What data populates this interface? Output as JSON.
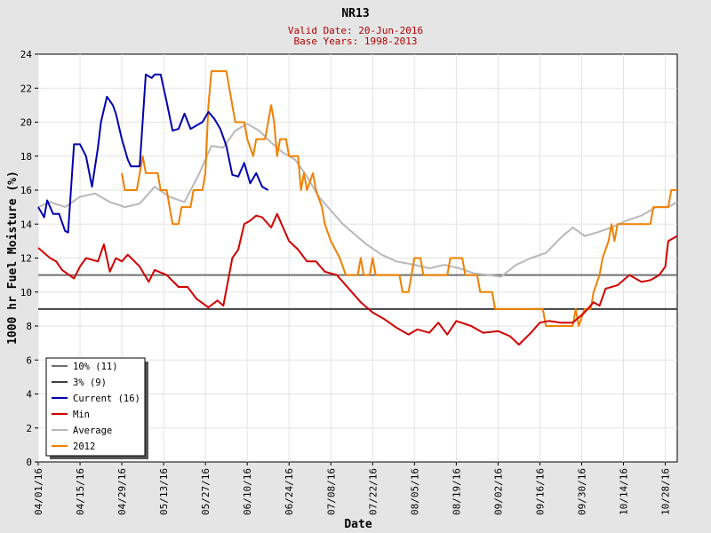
{
  "chart_data": {
    "type": "line",
    "title": "NR13",
    "subtitle_lines": [
      "Valid Date: 20-Jun-2016",
      "Base Years: 1998-2013"
    ],
    "xlabel": "Date",
    "ylabel": "1000 hr Fuel Moisture (%)",
    "x_start": "2016-04-01",
    "x_end": "2016-11-01",
    "ylim": [
      0,
      24
    ],
    "yticks": [
      0,
      2,
      4,
      6,
      8,
      10,
      12,
      14,
      16,
      18,
      20,
      22,
      24
    ],
    "xtick_labels": [
      "04/01/16",
      "04/15/16",
      "04/29/16",
      "05/13/16",
      "05/27/16",
      "06/10/16",
      "06/24/16",
      "07/08/16",
      "07/22/16",
      "08/05/16",
      "08/19/16",
      "09/02/16",
      "09/16/16",
      "09/30/16",
      "10/14/16",
      "10/28/16"
    ],
    "grid": true,
    "legend_position": "bottom-left",
    "thresholds": [
      {
        "name": "10% (11)",
        "value": 11,
        "color": "#707070"
      },
      {
        "name": "3% (9)",
        "value": 9,
        "color": "#404040"
      }
    ],
    "series": [
      {
        "name": "Current (16)",
        "color": "#0000b0",
        "points": [
          [
            "2016-04-01",
            15.0
          ],
          [
            "2016-04-03",
            14.4
          ],
          [
            "2016-04-04",
            15.4
          ],
          [
            "2016-04-06",
            14.6
          ],
          [
            "2016-04-08",
            14.6
          ],
          [
            "2016-04-10",
            13.6
          ],
          [
            "2016-04-11",
            13.5
          ],
          [
            "2016-04-13",
            18.7
          ],
          [
            "2016-04-15",
            18.7
          ],
          [
            "2016-04-17",
            18.0
          ],
          [
            "2016-04-19",
            16.2
          ],
          [
            "2016-04-21",
            18.5
          ],
          [
            "2016-04-22",
            20.0
          ],
          [
            "2016-04-24",
            21.5
          ],
          [
            "2016-04-26",
            21.0
          ],
          [
            "2016-04-27",
            20.5
          ],
          [
            "2016-04-29",
            19.0
          ],
          [
            "2016-05-01",
            17.8
          ],
          [
            "2016-05-02",
            17.4
          ],
          [
            "2016-05-05",
            17.4
          ],
          [
            "2016-05-07",
            22.8
          ],
          [
            "2016-05-09",
            22.6
          ],
          [
            "2016-05-10",
            22.8
          ],
          [
            "2016-05-12",
            22.8
          ],
          [
            "2016-05-14",
            21.2
          ],
          [
            "2016-05-16",
            19.5
          ],
          [
            "2016-05-18",
            19.6
          ],
          [
            "2016-05-20",
            20.5
          ],
          [
            "2016-05-22",
            19.6
          ],
          [
            "2016-05-24",
            19.8
          ],
          [
            "2016-05-26",
            20.0
          ],
          [
            "2016-05-28",
            20.6
          ],
          [
            "2016-05-30",
            20.2
          ],
          [
            "2016-06-01",
            19.6
          ],
          [
            "2016-06-03",
            18.6
          ],
          [
            "2016-06-05",
            16.9
          ],
          [
            "2016-06-07",
            16.8
          ],
          [
            "2016-06-09",
            17.6
          ],
          [
            "2016-06-11",
            16.4
          ],
          [
            "2016-06-13",
            17.0
          ],
          [
            "2016-06-15",
            16.2
          ],
          [
            "2016-06-17",
            16.0
          ]
        ]
      },
      {
        "name": "Min",
        "color": "#d00000",
        "points": [
          [
            "2016-04-01",
            12.6
          ],
          [
            "2016-04-05",
            12.0
          ],
          [
            "2016-04-07",
            11.8
          ],
          [
            "2016-04-09",
            11.3
          ],
          [
            "2016-04-13",
            10.8
          ],
          [
            "2016-04-15",
            11.5
          ],
          [
            "2016-04-17",
            12.0
          ],
          [
            "2016-04-21",
            11.8
          ],
          [
            "2016-04-23",
            12.8
          ],
          [
            "2016-04-25",
            11.2
          ],
          [
            "2016-04-27",
            12.0
          ],
          [
            "2016-04-29",
            11.8
          ],
          [
            "2016-05-01",
            12.2
          ],
          [
            "2016-05-05",
            11.5
          ],
          [
            "2016-05-08",
            10.6
          ],
          [
            "2016-05-10",
            11.3
          ],
          [
            "2016-05-14",
            11.0
          ],
          [
            "2016-05-18",
            10.3
          ],
          [
            "2016-05-21",
            10.3
          ],
          [
            "2016-05-24",
            9.6
          ],
          [
            "2016-05-28",
            9.1
          ],
          [
            "2016-05-31",
            9.5
          ],
          [
            "2016-06-02",
            9.2
          ],
          [
            "2016-06-05",
            12.0
          ],
          [
            "2016-06-07",
            12.5
          ],
          [
            "2016-06-09",
            14.0
          ],
          [
            "2016-06-11",
            14.2
          ],
          [
            "2016-06-13",
            14.5
          ],
          [
            "2016-06-15",
            14.4
          ],
          [
            "2016-06-18",
            13.8
          ],
          [
            "2016-06-20",
            14.6
          ],
          [
            "2016-06-24",
            13.0
          ],
          [
            "2016-06-27",
            12.5
          ],
          [
            "2016-06-30",
            11.8
          ],
          [
            "2016-07-03",
            11.8
          ],
          [
            "2016-07-06",
            11.2
          ],
          [
            "2016-07-10",
            11.0
          ],
          [
            "2016-07-14",
            10.2
          ],
          [
            "2016-07-18",
            9.4
          ],
          [
            "2016-07-22",
            8.8
          ],
          [
            "2016-07-26",
            8.4
          ],
          [
            "2016-07-30",
            7.9
          ],
          [
            "2016-08-03",
            7.5
          ],
          [
            "2016-08-06",
            7.8
          ],
          [
            "2016-08-10",
            7.6
          ],
          [
            "2016-08-13",
            8.2
          ],
          [
            "2016-08-16",
            7.5
          ],
          [
            "2016-08-19",
            8.3
          ],
          [
            "2016-08-24",
            8.0
          ],
          [
            "2016-08-28",
            7.6
          ],
          [
            "2016-09-02",
            7.7
          ],
          [
            "2016-09-06",
            7.4
          ],
          [
            "2016-09-09",
            6.9
          ],
          [
            "2016-09-13",
            7.6
          ],
          [
            "2016-09-16",
            8.2
          ],
          [
            "2016-09-19",
            8.3
          ],
          [
            "2016-09-23",
            8.2
          ],
          [
            "2016-09-27",
            8.2
          ],
          [
            "2016-10-01",
            8.8
          ],
          [
            "2016-10-04",
            9.4
          ],
          [
            "2016-10-06",
            9.2
          ],
          [
            "2016-10-08",
            10.2
          ],
          [
            "2016-10-12",
            10.4
          ],
          [
            "2016-10-16",
            11.0
          ],
          [
            "2016-10-20",
            10.6
          ],
          [
            "2016-10-23",
            10.7
          ],
          [
            "2016-10-26",
            11.0
          ],
          [
            "2016-10-28",
            11.5
          ],
          [
            "2016-10-29",
            13.0
          ],
          [
            "2016-11-01",
            13.3
          ]
        ]
      },
      {
        "name": "Average",
        "color": "#b8b8b8",
        "points": [
          [
            "2016-04-01",
            15.0
          ],
          [
            "2016-04-05",
            15.3
          ],
          [
            "2016-04-10",
            15.0
          ],
          [
            "2016-04-15",
            15.6
          ],
          [
            "2016-04-20",
            15.8
          ],
          [
            "2016-04-25",
            15.3
          ],
          [
            "2016-04-30",
            15.0
          ],
          [
            "2016-05-05",
            15.2
          ],
          [
            "2016-05-10",
            16.2
          ],
          [
            "2016-05-15",
            15.6
          ],
          [
            "2016-05-20",
            15.3
          ],
          [
            "2016-05-25",
            17.0
          ],
          [
            "2016-05-29",
            18.6
          ],
          [
            "2016-06-02",
            18.5
          ],
          [
            "2016-06-06",
            19.5
          ],
          [
            "2016-06-10",
            19.9
          ],
          [
            "2016-06-14",
            19.5
          ],
          [
            "2016-06-18",
            18.8
          ],
          [
            "2016-06-22",
            18.2
          ],
          [
            "2016-06-26",
            17.8
          ],
          [
            "2016-06-30",
            16.8
          ],
          [
            "2016-07-04",
            15.6
          ],
          [
            "2016-07-08",
            14.8
          ],
          [
            "2016-07-12",
            14.0
          ],
          [
            "2016-07-16",
            13.4
          ],
          [
            "2016-07-20",
            12.8
          ],
          [
            "2016-07-25",
            12.2
          ],
          [
            "2016-07-30",
            11.8
          ],
          [
            "2016-08-05",
            11.6
          ],
          [
            "2016-08-10",
            11.4
          ],
          [
            "2016-08-15",
            11.6
          ],
          [
            "2016-08-20",
            11.4
          ],
          [
            "2016-08-25",
            11.1
          ],
          [
            "2016-08-30",
            11.0
          ],
          [
            "2016-09-03",
            10.9
          ],
          [
            "2016-09-08",
            11.6
          ],
          [
            "2016-09-13",
            12.0
          ],
          [
            "2016-09-18",
            12.3
          ],
          [
            "2016-09-23",
            13.2
          ],
          [
            "2016-09-27",
            13.8
          ],
          [
            "2016-10-01",
            13.3
          ],
          [
            "2016-10-05",
            13.5
          ],
          [
            "2016-10-10",
            13.8
          ],
          [
            "2016-10-15",
            14.2
          ],
          [
            "2016-10-20",
            14.5
          ],
          [
            "2016-10-25",
            15.0
          ],
          [
            "2016-10-29",
            15.0
          ],
          [
            "2016-11-01",
            15.3
          ]
        ]
      },
      {
        "name": "2012",
        "color": "#f08000",
        "points": [
          [
            "2016-04-29",
            17.0
          ],
          [
            "2016-04-30",
            16.0
          ],
          [
            "2016-05-04",
            16.0
          ],
          [
            "2016-05-05",
            17.0
          ],
          [
            "2016-05-06",
            18.0
          ],
          [
            "2016-05-07",
            17.0
          ],
          [
            "2016-05-11",
            17.0
          ],
          [
            "2016-05-12",
            16.0
          ],
          [
            "2016-05-14",
            16.0
          ],
          [
            "2016-05-15",
            15.0
          ],
          [
            "2016-05-16",
            14.0
          ],
          [
            "2016-05-18",
            14.0
          ],
          [
            "2016-05-19",
            15.0
          ],
          [
            "2016-05-22",
            15.0
          ],
          [
            "2016-05-23",
            16.0
          ],
          [
            "2016-05-26",
            16.0
          ],
          [
            "2016-05-27",
            17.0
          ],
          [
            "2016-05-28",
            21.0
          ],
          [
            "2016-05-29",
            23.0
          ],
          [
            "2016-06-03",
            23.0
          ],
          [
            "2016-06-04",
            22.0
          ],
          [
            "2016-06-06",
            20.0
          ],
          [
            "2016-06-09",
            20.0
          ],
          [
            "2016-06-10",
            19.0
          ],
          [
            "2016-06-12",
            18.0
          ],
          [
            "2016-06-13",
            19.0
          ],
          [
            "2016-06-16",
            19.0
          ],
          [
            "2016-06-17",
            20.0
          ],
          [
            "2016-06-18",
            21.0
          ],
          [
            "2016-06-19",
            20.0
          ],
          [
            "2016-06-20",
            18.0
          ],
          [
            "2016-06-21",
            19.0
          ],
          [
            "2016-06-23",
            19.0
          ],
          [
            "2016-06-24",
            18.0
          ],
          [
            "2016-06-27",
            18.0
          ],
          [
            "2016-06-28",
            16.0
          ],
          [
            "2016-06-29",
            17.0
          ],
          [
            "2016-06-30",
            16.0
          ],
          [
            "2016-07-02",
            17.0
          ],
          [
            "2016-07-03",
            16.0
          ],
          [
            "2016-07-05",
            15.0
          ],
          [
            "2016-07-06",
            14.0
          ],
          [
            "2016-07-08",
            13.0
          ],
          [
            "2016-07-11",
            12.0
          ],
          [
            "2016-07-13",
            11.0
          ],
          [
            "2016-07-17",
            11.0
          ],
          [
            "2016-07-18",
            12.0
          ],
          [
            "2016-07-19",
            11.0
          ],
          [
            "2016-07-21",
            11.0
          ],
          [
            "2016-07-22",
            12.0
          ],
          [
            "2016-07-23",
            11.0
          ],
          [
            "2016-07-31",
            11.0
          ],
          [
            "2016-08-01",
            10.0
          ],
          [
            "2016-08-03",
            10.0
          ],
          [
            "2016-08-04",
            11.0
          ],
          [
            "2016-08-05",
            12.0
          ],
          [
            "2016-08-07",
            12.0
          ],
          [
            "2016-08-08",
            11.0
          ],
          [
            "2016-08-16",
            11.0
          ],
          [
            "2016-08-17",
            12.0
          ],
          [
            "2016-08-21",
            12.0
          ],
          [
            "2016-08-22",
            11.0
          ],
          [
            "2016-08-26",
            11.0
          ],
          [
            "2016-08-27",
            10.0
          ],
          [
            "2016-08-31",
            10.0
          ],
          [
            "2016-09-01",
            9.0
          ],
          [
            "2016-09-17",
            9.0
          ],
          [
            "2016-09-18",
            8.0
          ],
          [
            "2016-09-27",
            8.0
          ],
          [
            "2016-09-28",
            9.0
          ],
          [
            "2016-09-29",
            8.0
          ],
          [
            "2016-10-01",
            9.0
          ],
          [
            "2016-10-03",
            9.0
          ],
          [
            "2016-10-04",
            10.0
          ],
          [
            "2016-10-06",
            11.0
          ],
          [
            "2016-10-07",
            12.0
          ],
          [
            "2016-10-09",
            13.0
          ],
          [
            "2016-10-10",
            14.0
          ],
          [
            "2016-10-11",
            13.0
          ],
          [
            "2016-10-12",
            14.0
          ],
          [
            "2016-10-23",
            14.0
          ],
          [
            "2016-10-24",
            15.0
          ],
          [
            "2016-10-29",
            15.0
          ],
          [
            "2016-10-30",
            16.0
          ],
          [
            "2016-11-01",
            16.0
          ]
        ]
      }
    ]
  }
}
